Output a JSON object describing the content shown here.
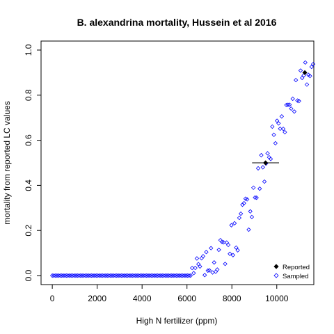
{
  "chart_data": {
    "type": "scatter",
    "title": "B. alexandrina mortality, Hussein et al 2016",
    "xlabel": "High N fertilizer (ppm)",
    "ylabel": "mortality from reported LC values",
    "xlim": [
      -500,
      11650
    ],
    "ylim": [
      -0.04,
      1.04
    ],
    "x_ticks": [
      0,
      2000,
      4000,
      6000,
      8000,
      10000
    ],
    "x_tick_labels": [
      "0",
      "2000",
      "4000",
      "6000",
      "8000",
      "10000"
    ],
    "y_ticks": [
      0.0,
      0.2,
      0.4,
      0.6,
      0.8,
      1.0
    ],
    "y_tick_labels": [
      "0.0",
      "0.2",
      "0.4",
      "0.6",
      "0.8",
      "1.0"
    ],
    "grid": false,
    "legend": {
      "position": "bottom-right",
      "entries": [
        {
          "label": "Reported",
          "marker": "filled-diamond",
          "color": "#000000"
        },
        {
          "label": "Sampled",
          "marker": "open-diamond",
          "color": "#0000ff"
        }
      ]
    },
    "series": [
      {
        "name": "Reported",
        "marker": "filled-diamond",
        "color": "#000000",
        "points": [
          {
            "x": 9500,
            "y": 0.5,
            "x_error": [
              8900,
              10100
            ]
          },
          {
            "x": 11250,
            "y": 0.9
          }
        ]
      },
      {
        "name": "Sampled",
        "marker": "open-diamond",
        "color": "#0000ff",
        "generated": "dense curve of sampled points: y≈0 for x<6200, rising sigmoidally to ≈0.5 at x≈9500 and ≈0.9 at x≈11300"
      }
    ]
  }
}
